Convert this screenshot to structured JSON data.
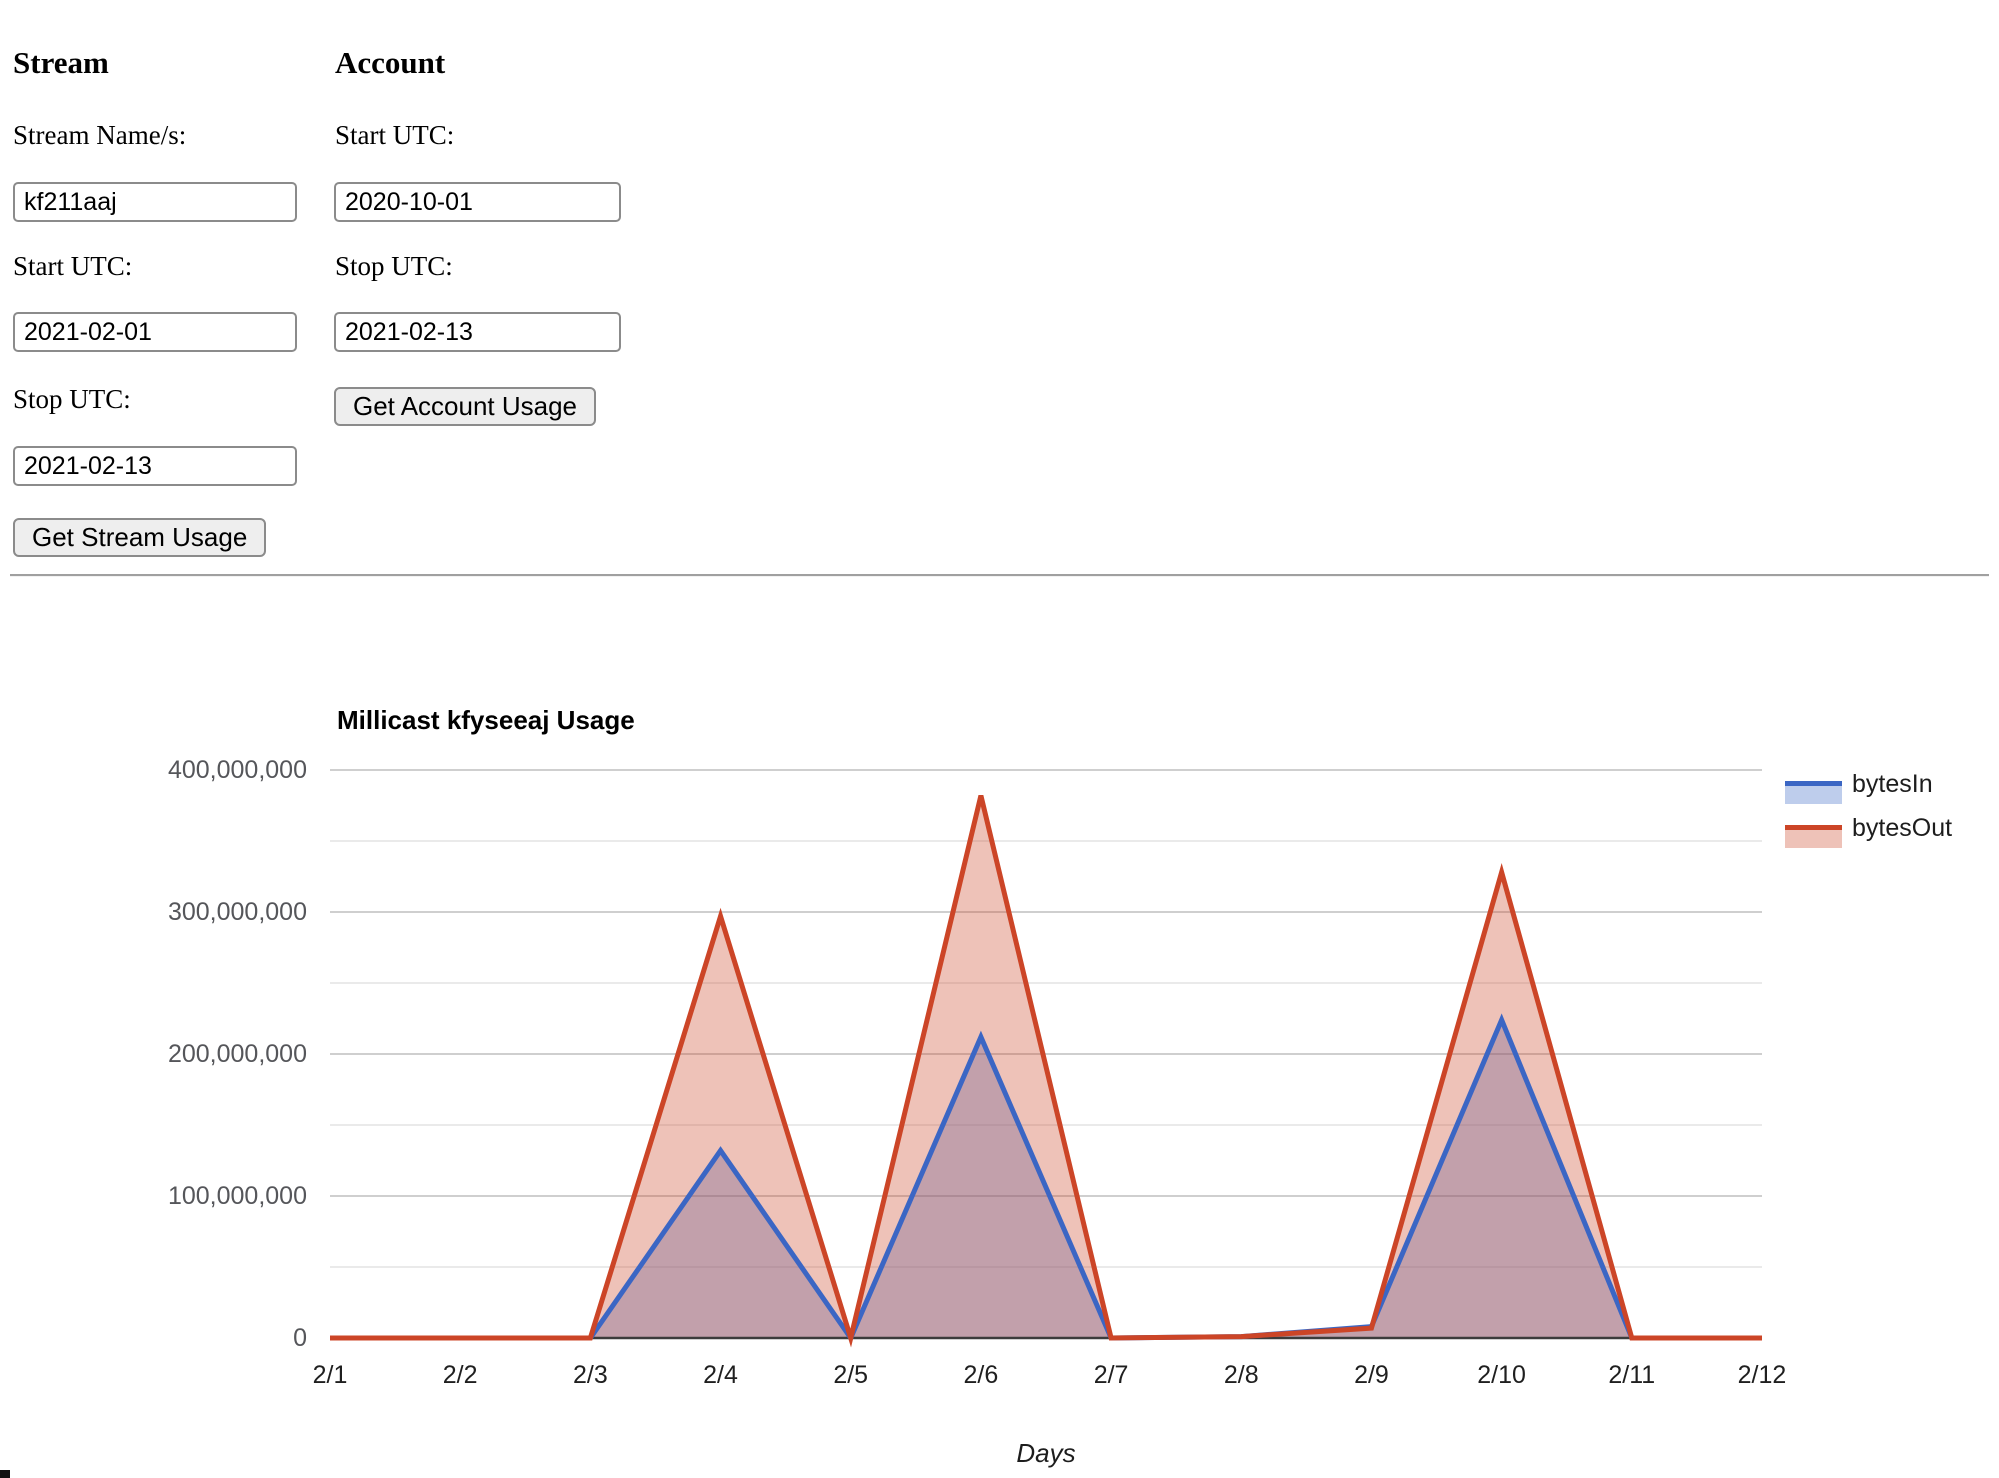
{
  "form": {
    "stream": {
      "heading": "Stream",
      "name_label": "Stream Name/s:",
      "name_value": "kf211aaj",
      "start_label": "Start UTC:",
      "start_value": "2021-02-01",
      "stop_label": "Stop UTC:",
      "stop_value": "2021-02-13",
      "button_label": "Get Stream Usage"
    },
    "account": {
      "heading": "Account",
      "start_label": "Start UTC:",
      "start_value": "2020-10-01",
      "stop_label": "Stop UTC:",
      "stop_value": "2021-02-13",
      "button_label": "Get Account Usage"
    }
  },
  "chart_data": {
    "type": "area",
    "title": "Millicast kfyseeaj Usage",
    "xlabel": "Days",
    "ylabel": "",
    "categories": [
      "2/1",
      "2/2",
      "2/3",
      "2/4",
      "2/5",
      "2/6",
      "2/7",
      "2/8",
      "2/9",
      "2/10",
      "2/11",
      "2/12"
    ],
    "series": [
      {
        "name": "bytesIn",
        "color": "#3B66C4",
        "values": [
          0,
          0,
          0,
          132000000,
          0,
          212000000,
          0,
          1000000,
          8000000,
          224000000,
          0,
          0
        ]
      },
      {
        "name": "bytesOut",
        "color": "#CC4527",
        "values": [
          0,
          0,
          0,
          297000000,
          0,
          382000000,
          0,
          1000000,
          7000000,
          328000000,
          0,
          0
        ]
      }
    ],
    "ylim": [
      0,
      400000000
    ],
    "y_tick_labels": [
      "0",
      "100,000,000",
      "200,000,000",
      "300,000,000",
      "400,000,000"
    ],
    "minor_grid_step": 50000000,
    "grid": true,
    "legend_position": "right",
    "colors": {
      "grid_major": "#cfcfcf",
      "grid_minor": "#eaeaea",
      "axis": "#3c3c3c",
      "fill_opacity": 0.33
    }
  }
}
